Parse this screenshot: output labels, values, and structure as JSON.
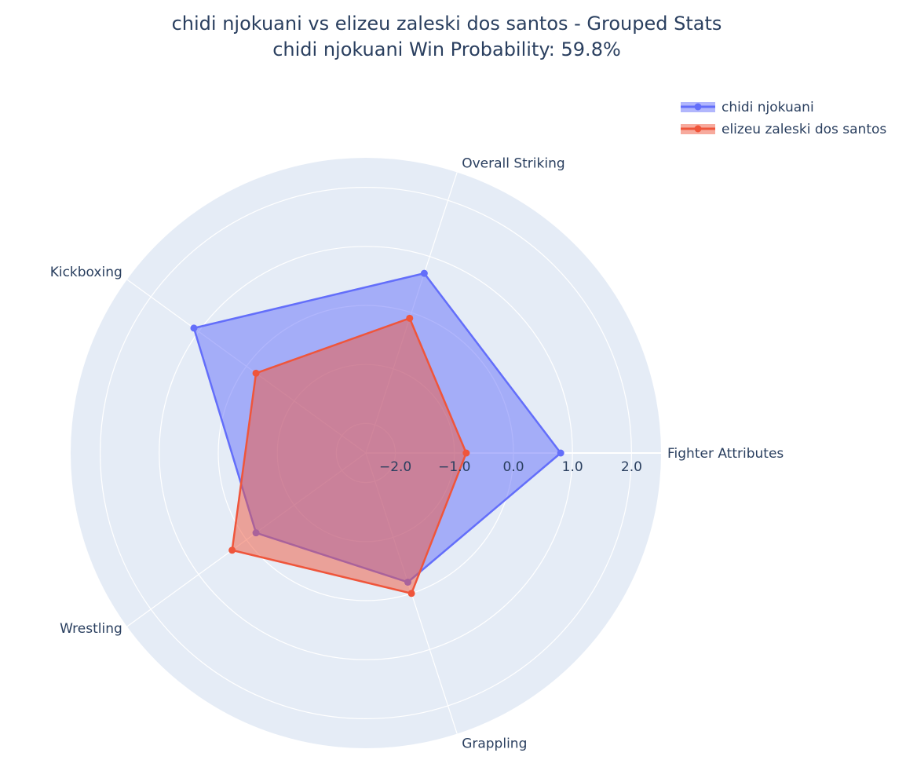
{
  "chart_data": {
    "type": "radar",
    "title_line1": "chidi njokuani vs elizeu zaleski dos santos - Grouped Stats",
    "title_line2": "chidi njokuani Win Probability: 59.8%",
    "categories": [
      "Fighter Attributes",
      "Overall Striking",
      "Kickboxing",
      "Wrestling",
      "Grappling"
    ],
    "radial_range": [
      -2.5,
      2.5
    ],
    "radial_ticks": [
      -2,
      -1,
      0,
      1,
      2
    ],
    "radial_tick_labels": [
      "−2.0",
      "−1.0",
      "0.0",
      "1.0",
      "2.0"
    ],
    "series": [
      {
        "name": "chidi njokuani",
        "color": "#636efa",
        "fill": "rgba(99,110,250,0.5)",
        "values": [
          0.8,
          0.7,
          1.1,
          -0.2,
          -0.2
        ]
      },
      {
        "name": "elizeu zaleski dos santos",
        "color": "#ef553b",
        "fill": "rgba(239,85,59,0.5)",
        "values": [
          -0.8,
          -0.1,
          -0.2,
          0.3,
          0.0
        ]
      }
    ],
    "legend_position": "top-right",
    "background_color": "#e5ecf6",
    "grid_color": "#ffffff"
  }
}
